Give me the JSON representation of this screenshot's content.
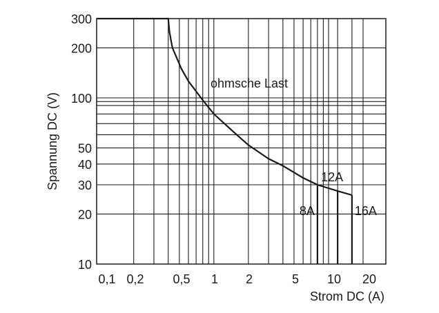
{
  "chart_data": {
    "type": "line",
    "title": "",
    "xlabel": "Strom DC (A)",
    "ylabel": "Spannung DC (V)",
    "x_scale": "log",
    "y_scale": "log",
    "xlim": [
      0.095,
      31.6
    ],
    "ylim": [
      10,
      300
    ],
    "grid": true,
    "x_ticks": [
      {
        "value": 0.1,
        "label": "0,1"
      },
      {
        "value": 0.2,
        "label": "0,2"
      },
      {
        "value": 0.5,
        "label": "0,5"
      },
      {
        "value": 1,
        "label": "1"
      },
      {
        "value": 2,
        "label": "2"
      },
      {
        "value": 5,
        "label": "5"
      },
      {
        "value": 10,
        "label": "10"
      },
      {
        "value": 20,
        "label": "20"
      }
    ],
    "y_ticks": [
      {
        "value": 300,
        "label": "300"
      },
      {
        "value": 200,
        "label": "200"
      },
      {
        "value": 100,
        "label": "100"
      },
      {
        "value": 50,
        "label": "50"
      },
      {
        "value": 40,
        "label": "40"
      },
      {
        "value": 30,
        "label": "30"
      },
      {
        "value": 20,
        "label": "20"
      },
      {
        "value": 10,
        "label": "10"
      }
    ],
    "x_gridlines": [
      0.2,
      0.3,
      0.4,
      0.5,
      0.6,
      0.7,
      0.8,
      0.9,
      1,
      2,
      3,
      4,
      5,
      6,
      7,
      8,
      9,
      10,
      12,
      16,
      20
    ],
    "y_gridlines": [
      200,
      100,
      95,
      90,
      80,
      70,
      60,
      50,
      40,
      30,
      20
    ],
    "series": [
      {
        "x": [
          0.095,
          0.4,
          0.41,
          0.435,
          0.52,
          0.6,
          0.8,
          1,
          1.5,
          2,
          3,
          4,
          6,
          8,
          12,
          16
        ],
        "y": [
          300,
          300,
          250,
          200,
          150,
          126,
          97,
          80,
          62,
          52,
          43,
          39,
          33,
          30,
          27.5,
          26
        ]
      }
    ],
    "limits": [
      {
        "current": 8,
        "label": "8A"
      },
      {
        "current": 12,
        "label": "12A"
      },
      {
        "current": 16,
        "label": "16A"
      }
    ],
    "annotations": [
      {
        "text": "ohmsche Last",
        "x": 2,
        "y": 120
      }
    ],
    "color": "#1a1a1a"
  }
}
